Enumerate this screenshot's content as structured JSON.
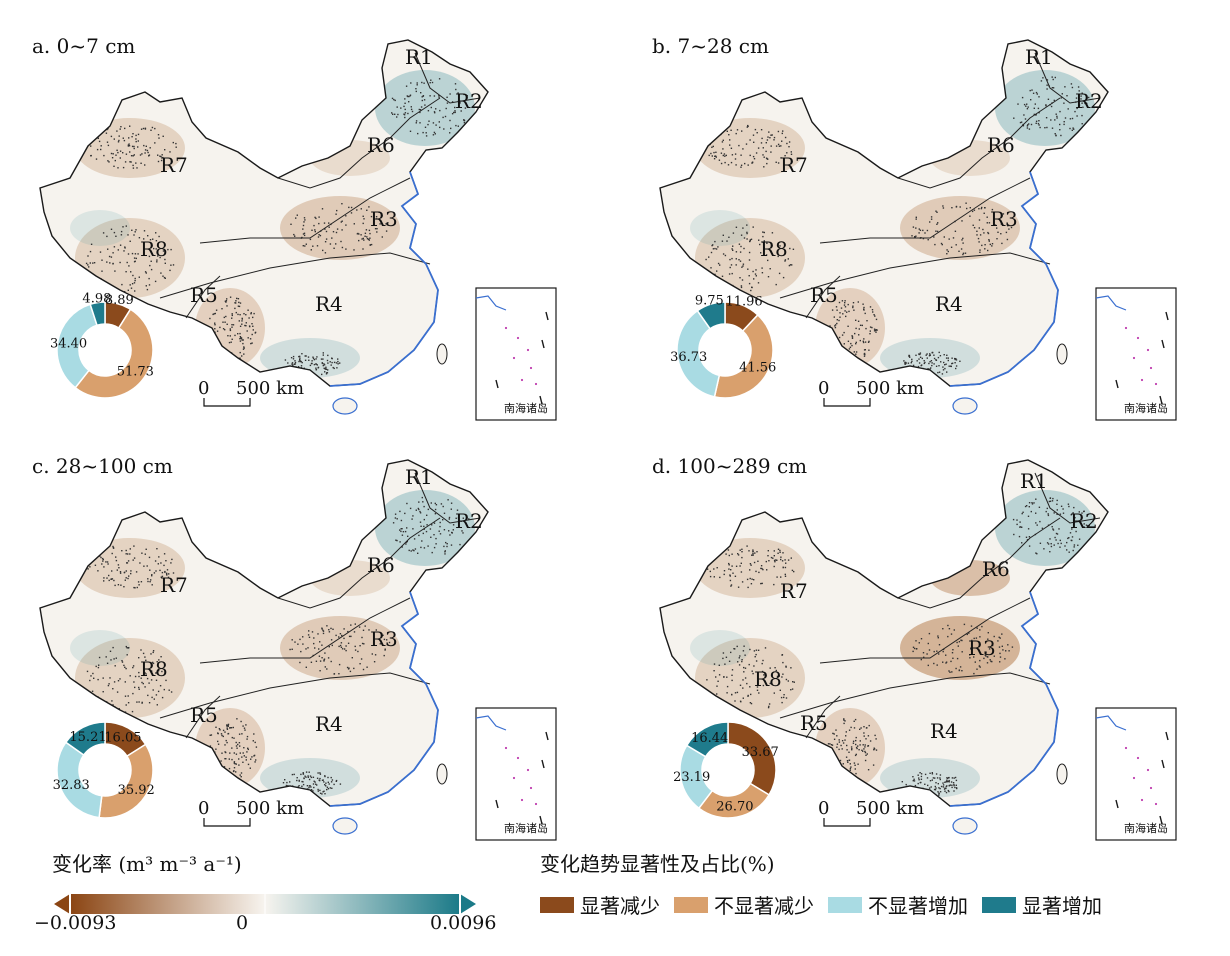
{
  "panels": [
    {
      "title": "a. 0~7 cm",
      "pie": [
        8.89,
        51.73,
        34.4,
        4.98
      ],
      "labels": [
        "8.89",
        "51.73",
        "34.40",
        "4.98"
      ]
    },
    {
      "title": "b. 7~28 cm",
      "pie": [
        11.96,
        41.56,
        36.73,
        9.75
      ],
      "labels": [
        "11.96",
        "41.56",
        "36.73",
        "9.75"
      ]
    },
    {
      "title": "c. 28~100 cm",
      "pie": [
        16.05,
        35.92,
        32.83,
        15.21
      ],
      "labels": [
        "16.05",
        "35.92",
        "32.83",
        "15.21"
      ]
    },
    {
      "title": "d. 100~289 cm",
      "pie": [
        33.67,
        26.7,
        23.19,
        16.44
      ],
      "labels": [
        "33.67",
        "26.70",
        "23.19",
        "16.44"
      ]
    }
  ],
  "regions": [
    "R1",
    "R2",
    "R3",
    "R4",
    "R5",
    "R6",
    "R7",
    "R8"
  ],
  "inset_label": "南海诸岛",
  "scale_bar": {
    "zero": "0",
    "distance": "500 km"
  },
  "colorbar": {
    "title": "变化率 (m³ m⁻³ a⁻¹)",
    "min_label": "−0.0093",
    "mid_label": "0",
    "max_label": "0.0096",
    "colors": {
      "neg": "#8b4513",
      "mid": "#f7f4ef",
      "pos": "#1b7a88"
    }
  },
  "significance_legend": {
    "title": "变化趋势显著性及占比(%)",
    "items": [
      {
        "label": "显著减少",
        "color": "#8b4a1c"
      },
      {
        "label": "不显著减少",
        "color": "#d9a06d"
      },
      {
        "label": "不显著增加",
        "color": "#a9dbe3"
      },
      {
        "label": "显著增加",
        "color": "#1f7b8c"
      }
    ]
  }
}
